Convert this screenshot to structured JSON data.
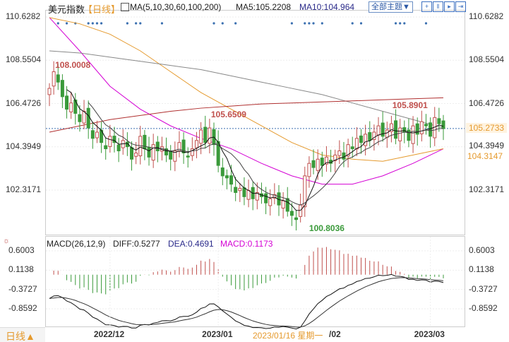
{
  "header": {
    "title": "美元指数",
    "period": "【日线】",
    "ma_label": "MA(5,10,30,60,100,200)",
    "ma5": "MA5:105.2208",
    "ma10": "MA10:104.964",
    "theme_button": "全部主题▼"
  },
  "price_axis": {
    "ticks": [
      "110.6282",
      "108.5504",
      "106.4726",
      "104.3949",
      "102.3171"
    ],
    "tick_values": [
      110.6282,
      108.5504,
      106.4726,
      104.3949,
      102.3171
    ],
    "current": "105.2733",
    "current_value": 105.2733,
    "ma_right": "104.3147"
  },
  "annotations": [
    {
      "text": "108.0008",
      "value": 108.0008,
      "index": 1
    },
    {
      "text": "105.6509",
      "value": 105.6509,
      "index": 37
    },
    {
      "text": "100.8036",
      "value": 100.8036,
      "index": 60
    },
    {
      "text": "105.8901",
      "value": 105.8901,
      "index": 89
    }
  ],
  "macd": {
    "label": "MACD(26,12,9)",
    "diff": "DIFF:0.5277",
    "dea": "DEA:0.4691",
    "macd": "MACD:0.1173",
    "ticks": [
      "0.6003",
      "0.1138",
      "-0.3727",
      "-0.8592"
    ],
    "tick_values": [
      0.6003,
      0.1138,
      -0.3727,
      -0.8592
    ]
  },
  "x_axis": {
    "labels": [
      {
        "text": "2022/12",
        "index": 14
      },
      {
        "text": "2023/01",
        "index": 39
      },
      {
        "text": "2023/03",
        "index": 88
      }
    ],
    "hover_date": "2023/01/16 星期一",
    "hover_tail": "/02"
  },
  "footer": {
    "period_button": "日线▲"
  },
  "colors": {
    "up": "#c0504d",
    "down": "#3a9a3a",
    "ma30": "#d400d4",
    "ma60": "#e59a2e",
    "ma100": "#888888",
    "ma200": "#b03030",
    "accent": "#e59a2e"
  },
  "closes": [
    107.2,
    108.0,
    107.5,
    106.8,
    106.2,
    106.5,
    106.0,
    105.6,
    106.1,
    105.3,
    104.8,
    105.1,
    104.6,
    104.3,
    104.9,
    104.6,
    104.2,
    104.7,
    104.4,
    103.8,
    104.1,
    104.9,
    104.3,
    103.9,
    104.5,
    104.2,
    104.4,
    104.0,
    103.8,
    104.2,
    104.6,
    104.1,
    103.9,
    104.3,
    104.7,
    105.2,
    104.6,
    105.3,
    104.5,
    103.5,
    103.0,
    102.9,
    102.6,
    102.2,
    102.4,
    102.0,
    102.3,
    101.9,
    102.2,
    102.0,
    101.7,
    101.9,
    102.1,
    101.6,
    101.8,
    101.3,
    101.1,
    100.9,
    101.6,
    103.0,
    103.6,
    103.4,
    103.8,
    103.5,
    103.9,
    103.6,
    104.0,
    104.2,
    103.8,
    104.5,
    104.3,
    104.8,
    104.6,
    105.0,
    104.7,
    105.1,
    105.4,
    104.9,
    105.2,
    105.5,
    104.8,
    105.3,
    105.1,
    104.7,
    105.4,
    105.0,
    105.6,
    105.4,
    104.9,
    105.8,
    105.5,
    105.27
  ],
  "long_ma": {
    "ma30": [
      110.6,
      109.0,
      107.3,
      106.2,
      105.4,
      104.8,
      104.3,
      103.6,
      103.0,
      102.6,
      102.6,
      103.0,
      103.6,
      104.3
    ],
    "ma60": [
      110.6,
      110.3,
      109.8,
      109.0,
      108.0,
      107.0,
      106.2,
      105.4,
      104.6,
      104.0,
      103.8,
      103.7,
      104.0,
      104.3
    ],
    "ma100": [
      109.0,
      108.9,
      108.7,
      108.5,
      108.3,
      108.1,
      107.8,
      107.5,
      107.2,
      106.9,
      106.5,
      106.1,
      105.7,
      105.3
    ],
    "ma200": [
      105.1,
      105.4,
      105.7,
      105.9,
      106.1,
      106.25,
      106.35,
      106.45,
      106.5,
      106.55,
      106.6,
      106.65,
      106.7,
      106.75
    ]
  }
}
